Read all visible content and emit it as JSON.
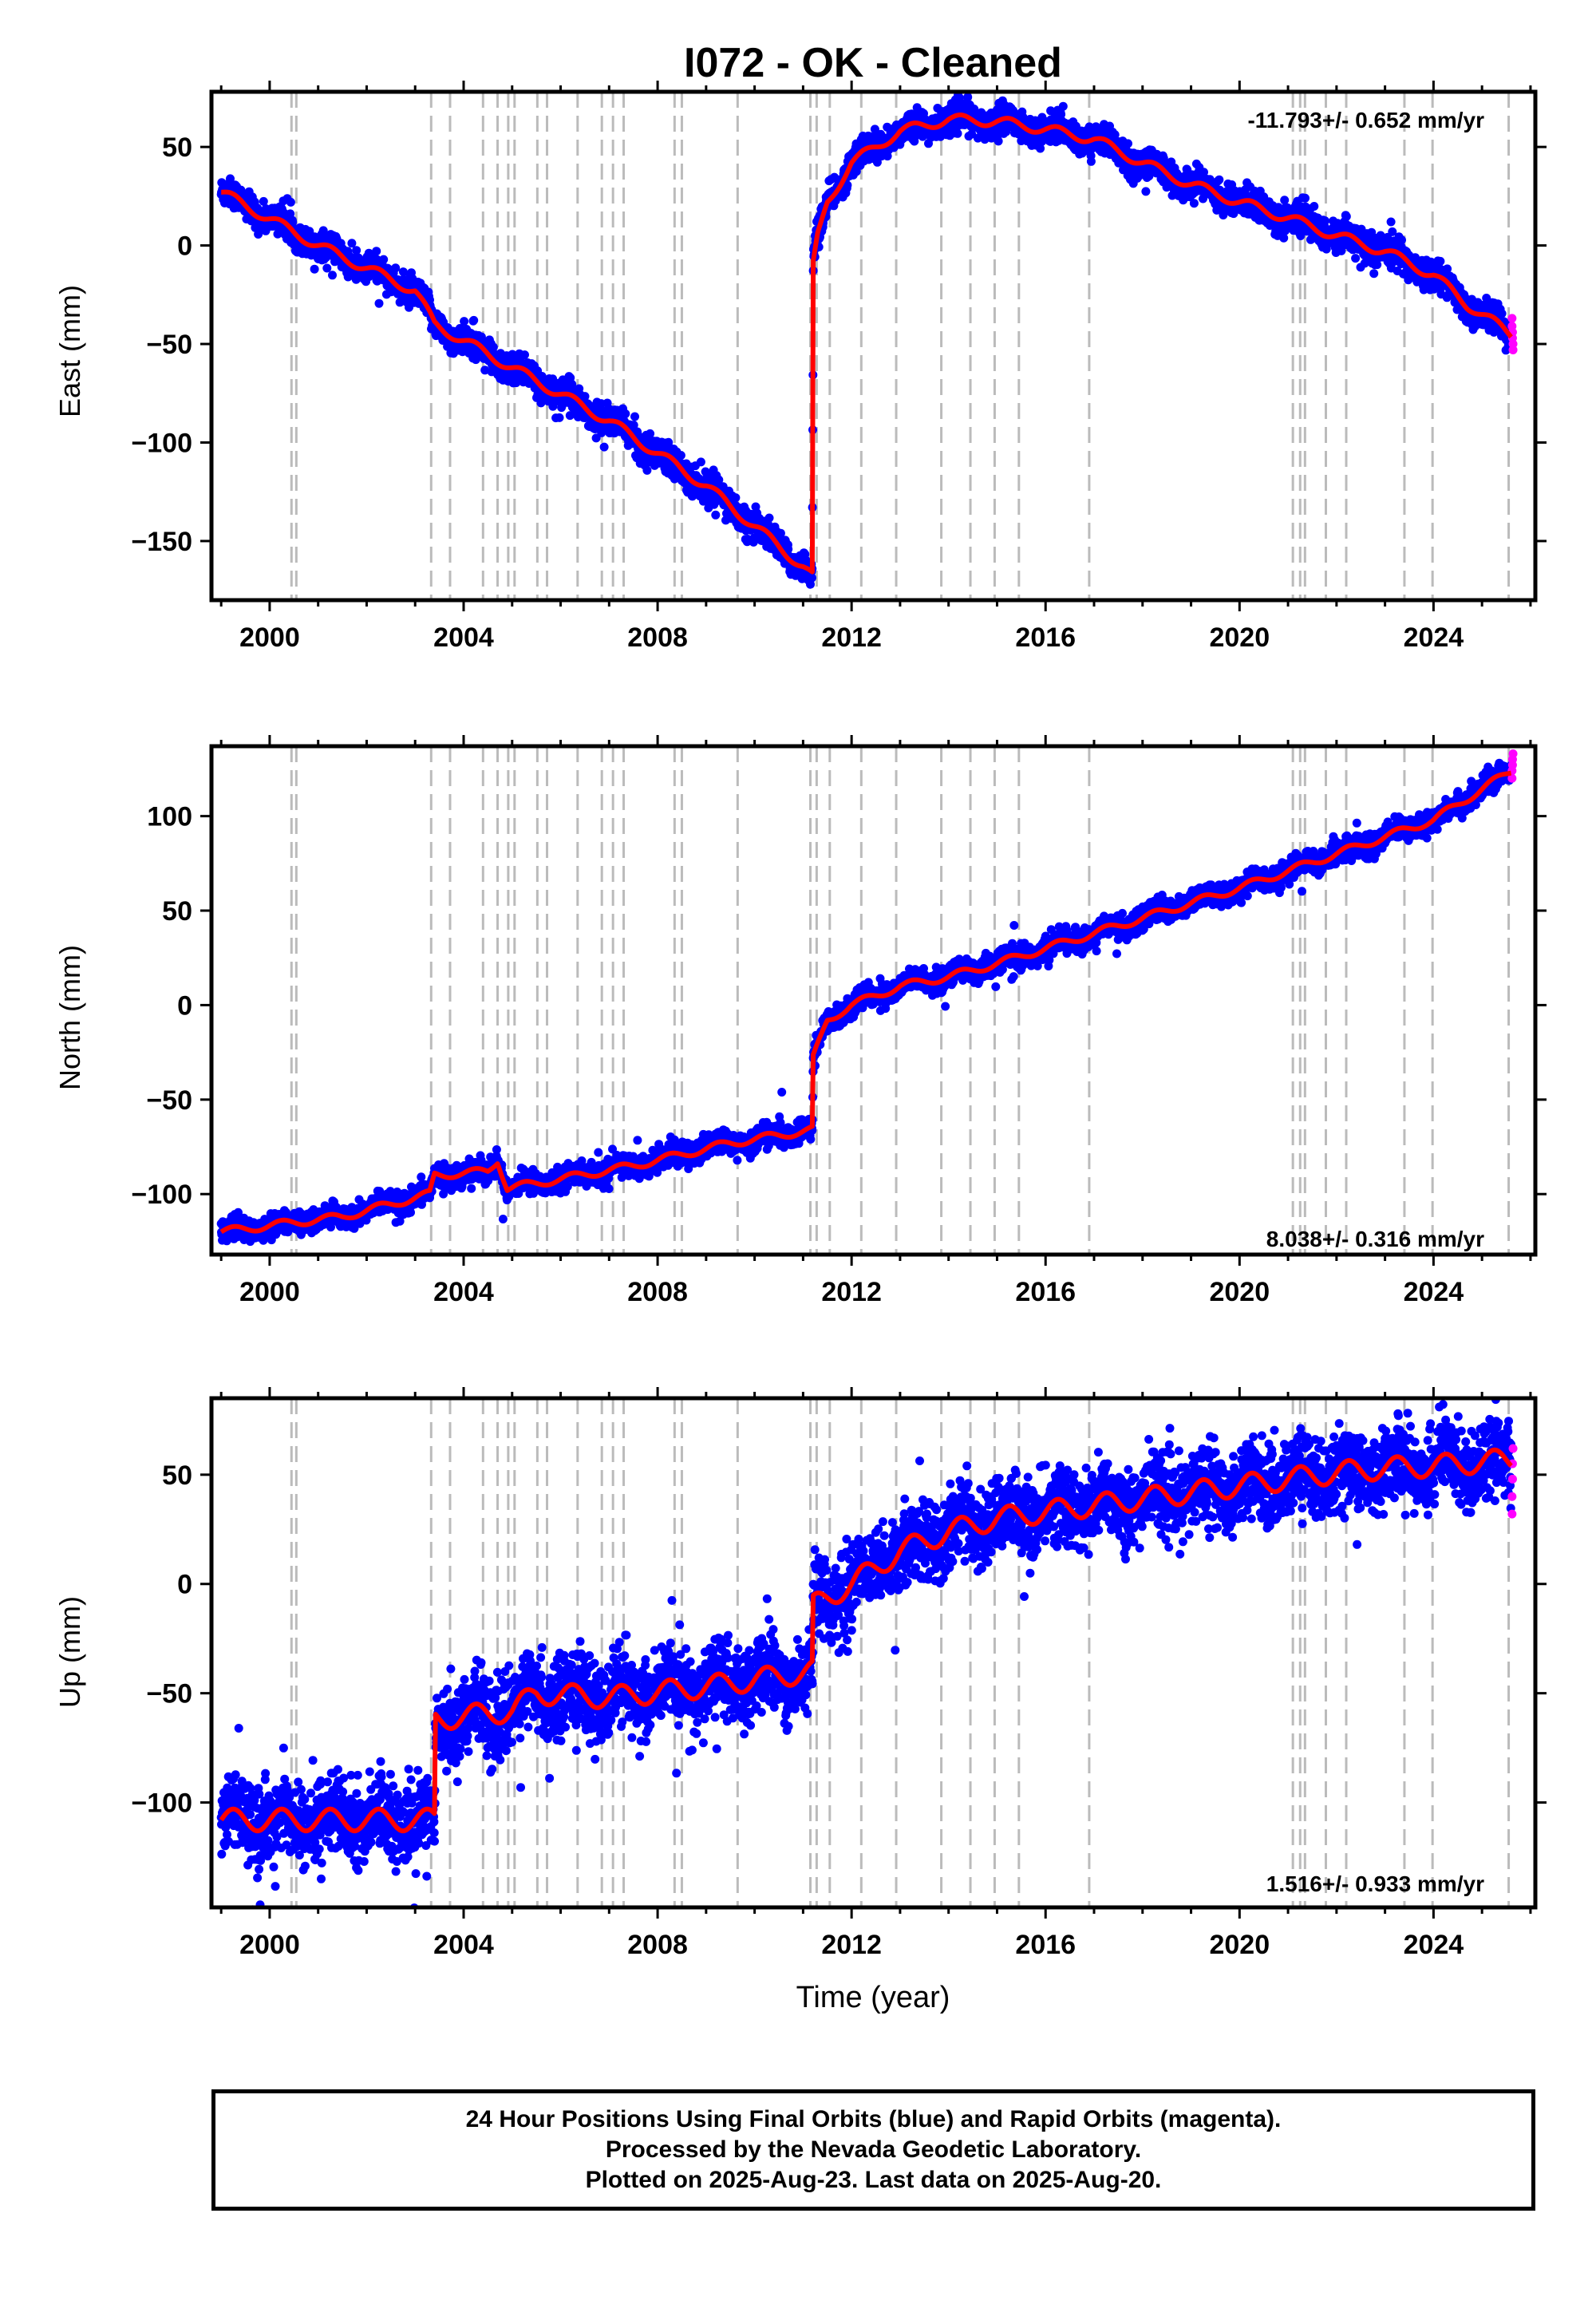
{
  "title": "I072  - OK - Cleaned",
  "xlabel": "Time (year)",
  "x_ticks": [
    2000,
    2004,
    2008,
    2012,
    2016,
    2020,
    2024
  ],
  "colors": {
    "final": "#0000ff",
    "rapid": "#ff00ff",
    "model": "#ff0000",
    "event_lines": "#bbbbbb"
  },
  "caption": [
    "24 Hour Positions Using Final Orbits (blue) and Rapid Orbits (magenta).",
    "Processed by the Nevada Geodetic Laboratory.",
    "Plotted on 2025-Aug-23. Last data on 2025-Aug-20."
  ],
  "chart_data": [
    {
      "type": "scatter",
      "id": "east",
      "ylabel": "East (mm)",
      "rate": "-11.793+/- 0.652 mm/yr",
      "rate_position": "top-right",
      "xlim": [
        1998.8,
        2026.1
      ],
      "ylim": [
        -180,
        78
      ],
      "y_ticks": [
        50,
        0,
        -50,
        -100,
        -150
      ],
      "event_lines": [
        2000.45,
        2000.55,
        2003.33,
        2003.72,
        2004.4,
        2004.7,
        2004.92,
        2005.05,
        2005.52,
        2005.72,
        2006.35,
        2006.85,
        2007.08,
        2007.3,
        2008.35,
        2008.5,
        2009.65,
        2011.15,
        2011.28,
        2011.55,
        2012.2,
        2012.92,
        2013.85,
        2014.45,
        2014.95,
        2015.45,
        2016.9,
        2021.1,
        2021.25,
        2021.35,
        2021.78,
        2022.2,
        2023.4,
        2023.98,
        2025.55
      ],
      "model_anchor_points": [
        [
          1999.0,
          27
        ],
        [
          2001.0,
          0
        ],
        [
          2003.0,
          -23
        ],
        [
          2003.4,
          -40
        ],
        [
          2005.0,
          -62
        ],
        [
          2007.0,
          -89
        ],
        [
          2009.0,
          -122
        ],
        [
          2011.0,
          -163
        ],
        [
          2011.19,
          -168
        ],
        [
          2011.21,
          -10
        ],
        [
          2011.3,
          4
        ],
        [
          2011.5,
          22
        ],
        [
          2012.0,
          42
        ],
        [
          2013.0,
          58
        ],
        [
          2014.0,
          64
        ],
        [
          2015.0,
          63
        ],
        [
          2016.0,
          59
        ],
        [
          2017.0,
          54
        ],
        [
          2018.0,
          42
        ],
        [
          2019.0,
          31
        ],
        [
          2020.0,
          22
        ],
        [
          2021.0,
          14
        ],
        [
          2022.0,
          5
        ],
        [
          2023.0,
          -3
        ],
        [
          2024.0,
          -15
        ],
        [
          2024.7,
          -30
        ],
        [
          2025.6,
          -45
        ]
      ],
      "seasonal_amplitude": 2.5,
      "scatter_sigma": 3.5,
      "rapid_orbit_points": [
        [
          2025.62,
          -37
        ],
        [
          2025.62,
          -41
        ],
        [
          2025.63,
          -44
        ],
        [
          2025.63,
          -47
        ],
        [
          2025.64,
          -50
        ],
        [
          2025.64,
          -53
        ]
      ]
    },
    {
      "type": "scatter",
      "id": "north",
      "ylabel": "North (mm)",
      "rate": "8.038+/- 0.316 mm/yr",
      "rate_position": "bottom-right",
      "xlim": [
        1998.8,
        2026.1
      ],
      "ylim": [
        -132,
        137
      ],
      "y_ticks": [
        100,
        50,
        0,
        -50,
        -100
      ],
      "event_lines": [
        2000.45,
        2000.55,
        2003.33,
        2003.72,
        2004.4,
        2004.7,
        2004.92,
        2005.05,
        2005.52,
        2005.72,
        2006.35,
        2006.85,
        2007.08,
        2007.3,
        2008.35,
        2008.5,
        2009.65,
        2011.15,
        2011.28,
        2011.55,
        2012.2,
        2012.92,
        2013.85,
        2014.45,
        2014.95,
        2015.45,
        2016.9,
        2021.1,
        2021.25,
        2021.35,
        2021.78,
        2022.2,
        2023.4,
        2023.98,
        2025.55
      ],
      "model_anchor_points": [
        [
          1999.0,
          -120
        ],
        [
          2000.5,
          -115
        ],
        [
          2001.5,
          -112
        ],
        [
          2003.3,
          -100
        ],
        [
          2003.4,
          -90
        ],
        [
          2004.5,
          -88
        ],
        [
          2004.7,
          -82
        ],
        [
          2004.9,
          -97
        ],
        [
          2006.0,
          -92
        ],
        [
          2007.5,
          -85
        ],
        [
          2009.5,
          -73
        ],
        [
          2011.19,
          -66
        ],
        [
          2011.21,
          -28
        ],
        [
          2011.5,
          -8
        ],
        [
          2012.0,
          0
        ],
        [
          2013.0,
          10
        ],
        [
          2014.0,
          15
        ],
        [
          2015.0,
          22
        ],
        [
          2016.0,
          30
        ],
        [
          2017.0,
          38
        ],
        [
          2018.0,
          46
        ],
        [
          2019.0,
          54
        ],
        [
          2020.0,
          62
        ],
        [
          2021.0,
          71
        ],
        [
          2022.0,
          80
        ],
        [
          2023.0,
          89
        ],
        [
          2024.0,
          98
        ],
        [
          2025.6,
          124
        ]
      ],
      "seasonal_amplitude": 2.0,
      "scatter_sigma": 2.8,
      "rapid_orbit_points": [
        [
          2025.62,
          120
        ],
        [
          2025.62,
          124
        ],
        [
          2025.63,
          127
        ],
        [
          2025.63,
          130
        ],
        [
          2025.64,
          133
        ]
      ]
    },
    {
      "type": "scatter",
      "id": "up",
      "ylabel": "Up (mm)",
      "rate": "1.516+/- 0.933 mm/yr",
      "rate_position": "bottom-right",
      "xlim": [
        1998.8,
        2026.1
      ],
      "ylim": [
        -148,
        85
      ],
      "y_ticks": [
        50,
        0,
        -50,
        -100
      ],
      "event_lines": [
        2000.45,
        2000.55,
        2003.33,
        2003.72,
        2004.4,
        2004.7,
        2004.92,
        2005.05,
        2005.52,
        2005.72,
        2006.35,
        2006.85,
        2007.08,
        2007.3,
        2008.35,
        2008.5,
        2009.65,
        2011.15,
        2011.28,
        2011.55,
        2012.2,
        2012.92,
        2013.85,
        2014.45,
        2014.95,
        2015.45,
        2016.9,
        2021.1,
        2021.25,
        2021.35,
        2021.78,
        2022.2,
        2023.4,
        2023.98,
        2025.55
      ],
      "model_anchor_points": [
        [
          1999.0,
          -108
        ],
        [
          2003.4,
          -108
        ],
        [
          2003.42,
          -62
        ],
        [
          2005.0,
          -58
        ],
        [
          2005.5,
          -50
        ],
        [
          2007.0,
          -52
        ],
        [
          2009.0,
          -47
        ],
        [
          2011.19,
          -40
        ],
        [
          2011.21,
          -10
        ],
        [
          2012.0,
          0
        ],
        [
          2013.0,
          15
        ],
        [
          2014.0,
          24
        ],
        [
          2015.0,
          30
        ],
        [
          2016.0,
          33
        ],
        [
          2017.0,
          36
        ],
        [
          2018.0,
          39
        ],
        [
          2019.0,
          42
        ],
        [
          2020.0,
          45
        ],
        [
          2021.0,
          48
        ],
        [
          2022.0,
          51
        ],
        [
          2023.0,
          53
        ],
        [
          2024.0,
          54
        ],
        [
          2025.6,
          57
        ]
      ],
      "seasonal_amplitude": 5.0,
      "scatter_sigma": 8.5,
      "rapid_orbit_points": [
        [
          2025.62,
          32
        ],
        [
          2025.62,
          40
        ],
        [
          2025.63,
          48
        ],
        [
          2025.63,
          55
        ],
        [
          2025.64,
          62
        ]
      ]
    }
  ]
}
